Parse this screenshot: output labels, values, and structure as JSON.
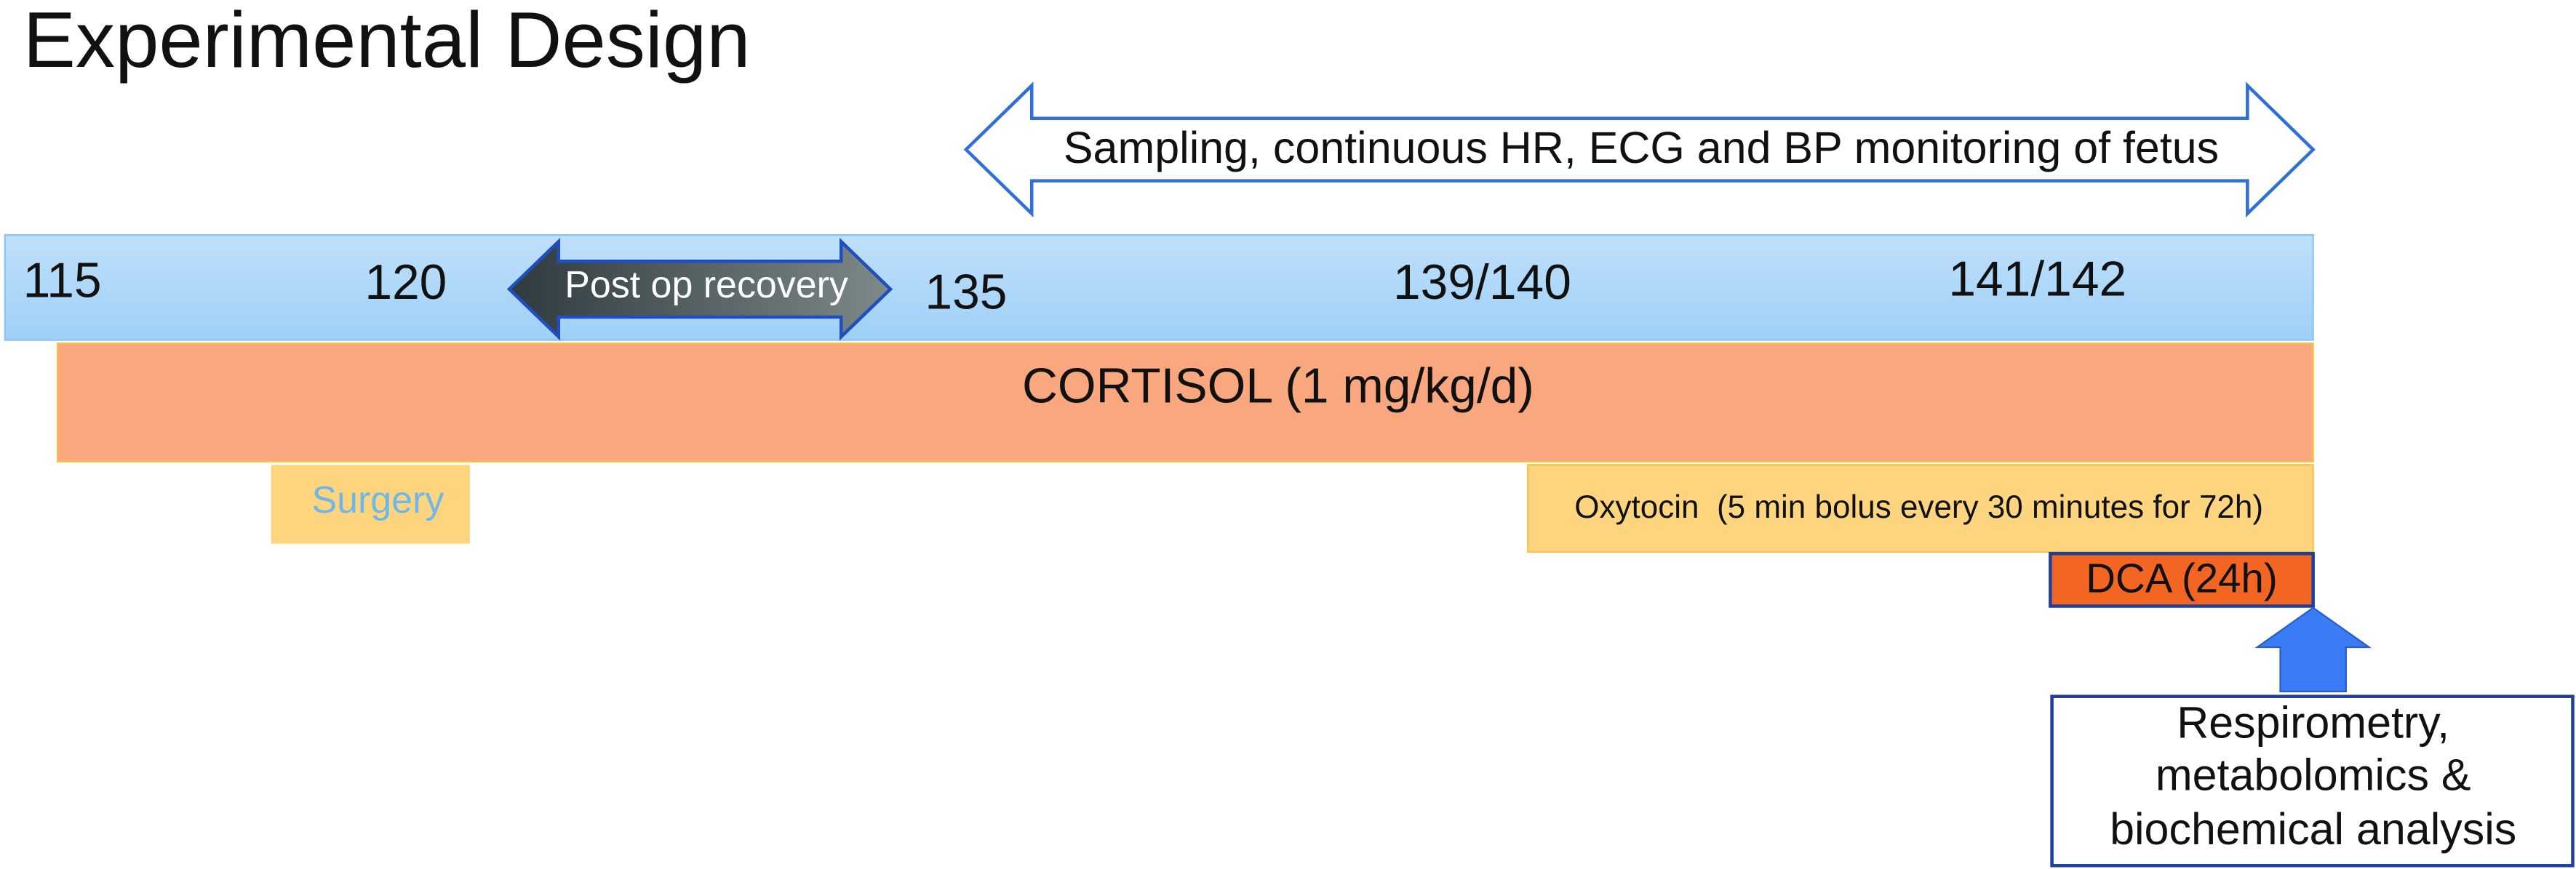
{
  "header": {
    "title": "Experimental Design"
  },
  "sampling": {
    "label": "Sampling, continuous HR, ECG and BP monitoring of fetus"
  },
  "timeline": {
    "ticks": [
      "115",
      "120",
      "135",
      "139/140",
      "141/142"
    ]
  },
  "recovery": {
    "label": "Post op recovery"
  },
  "cortisol": {
    "label": "CORTISOL (1 mg/kg/d)"
  },
  "surgery": {
    "label": "Surgery"
  },
  "oxytocin": {
    "label": "Oxytocin  (5 min bolus every 30 minutes for 72h)"
  },
  "dca": {
    "label": "DCA (24h)"
  },
  "analysis": {
    "lines": [
      "Respirometry,",
      "metabolomics &",
      "biochemical analysis"
    ]
  }
}
